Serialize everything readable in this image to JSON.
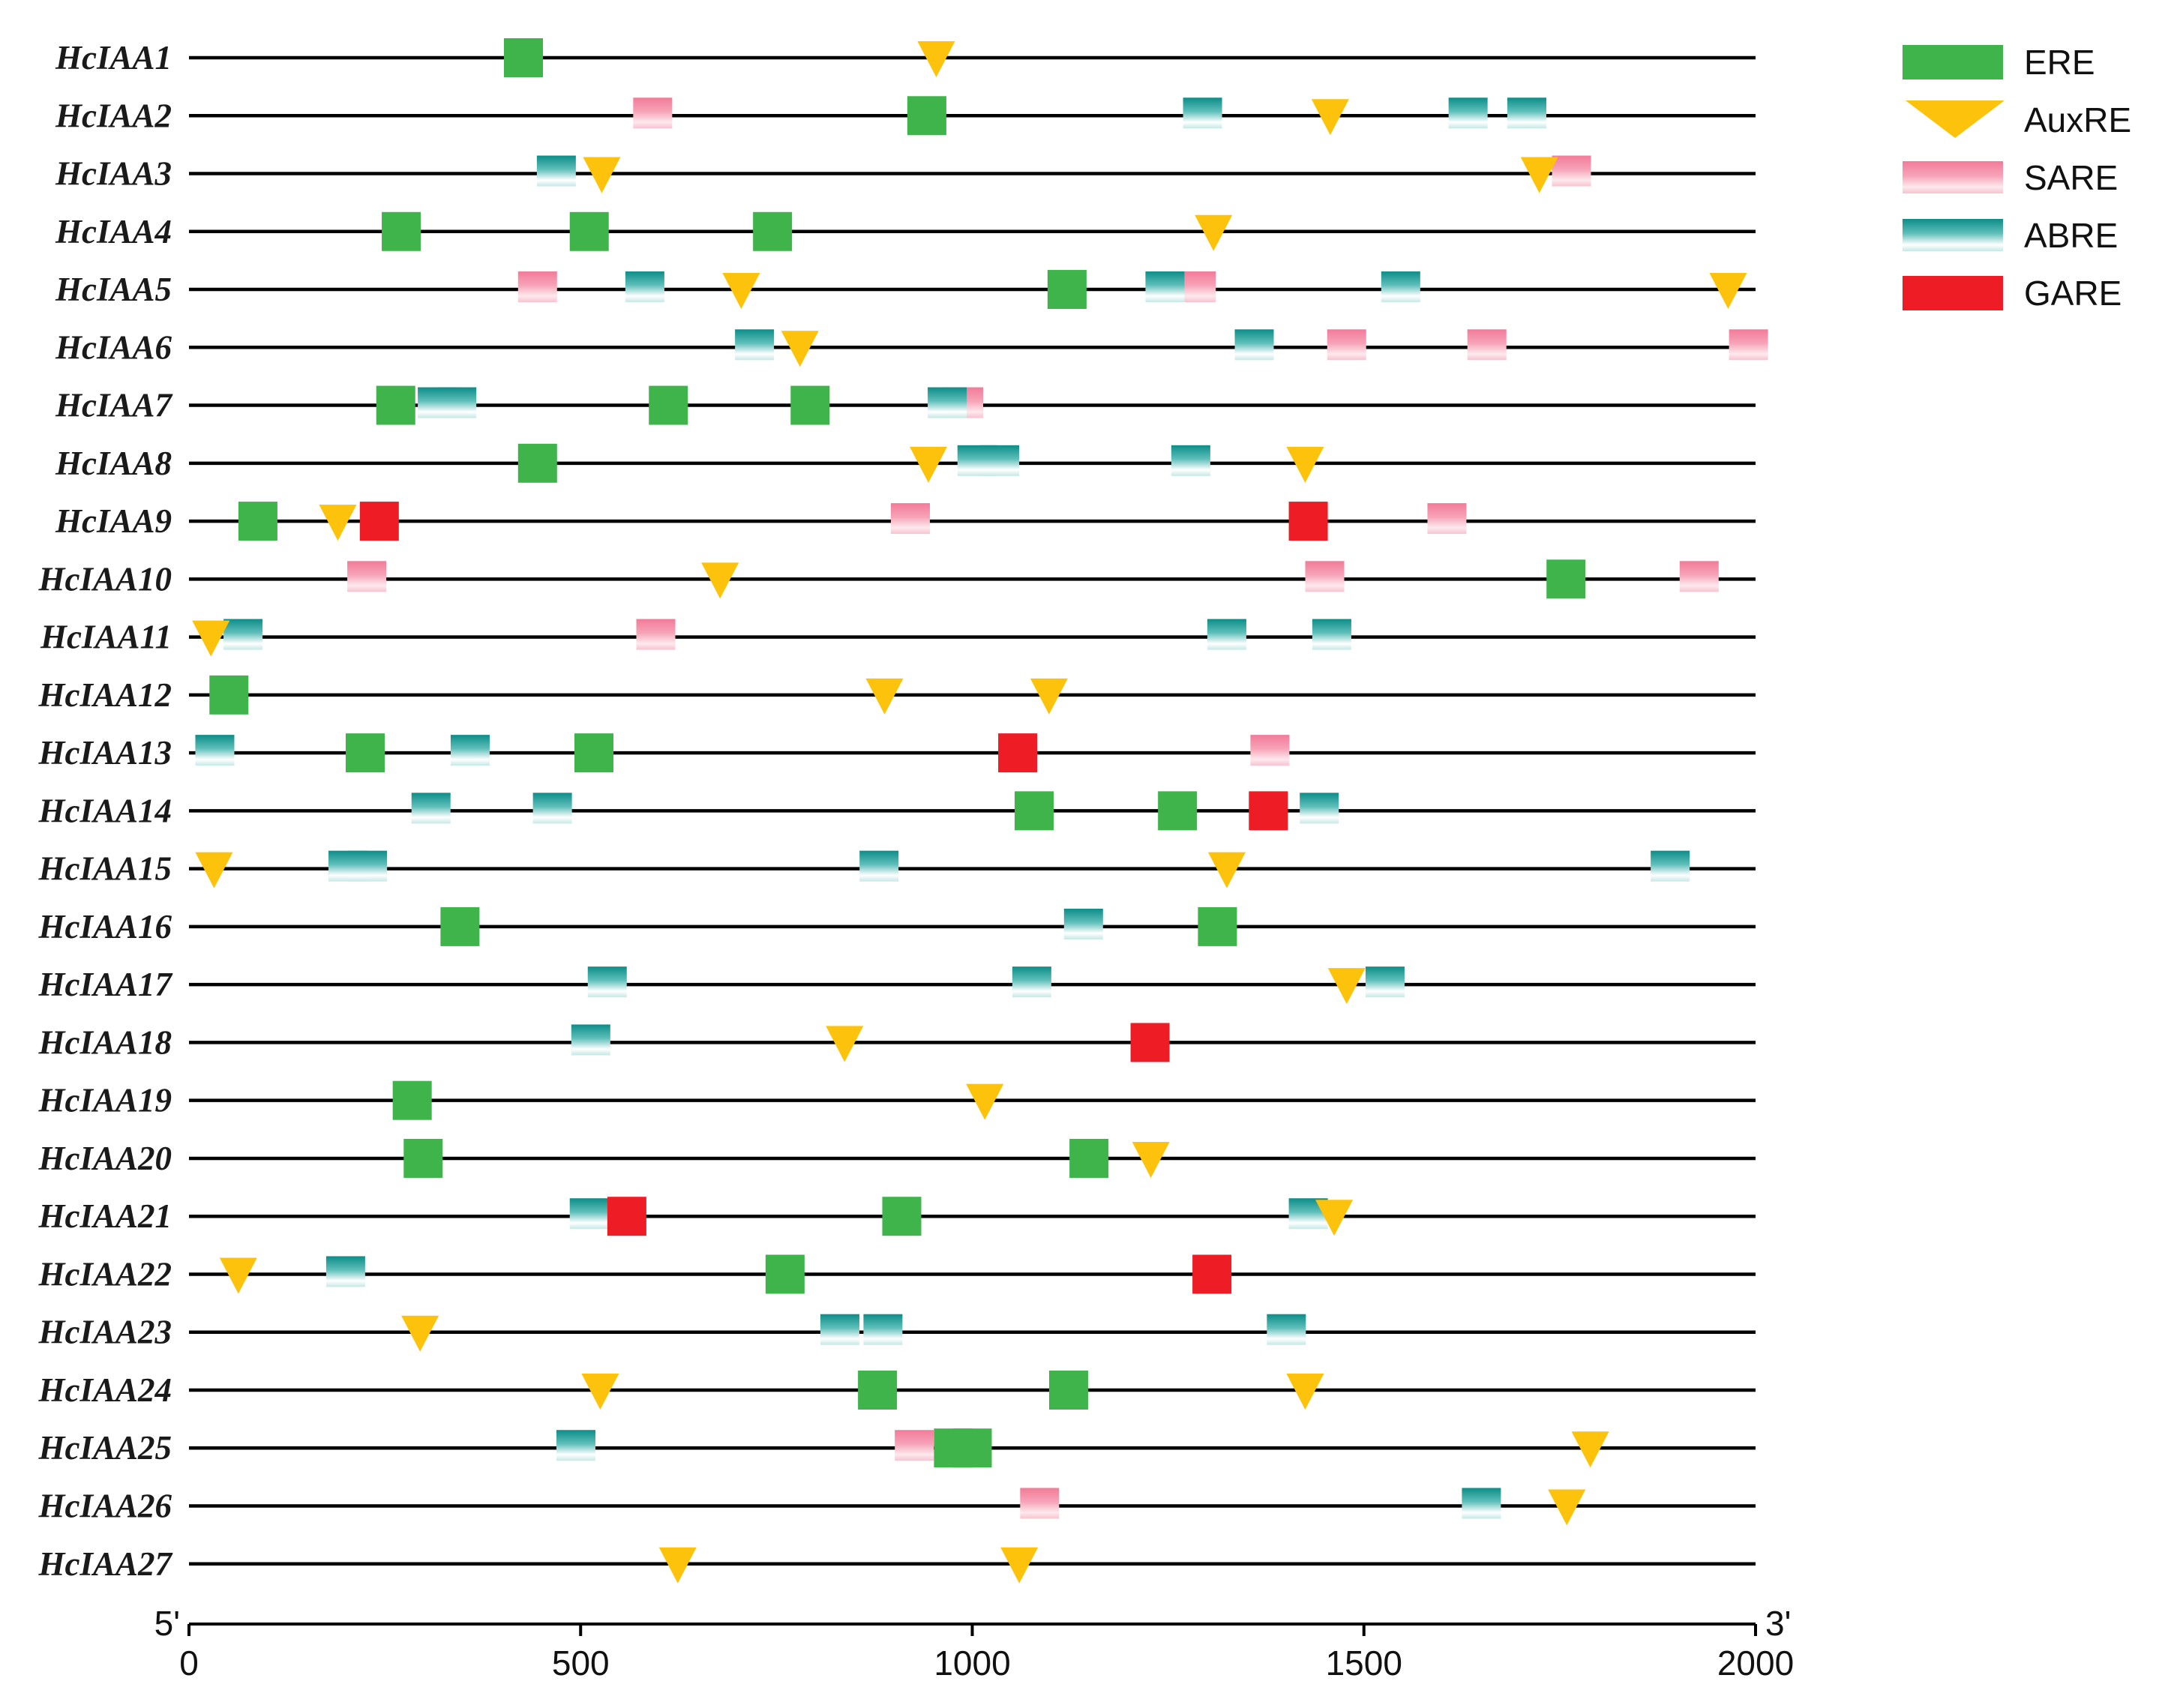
{
  "legend": [
    {
      "name": "ERE",
      "icon": "green-square-icon",
      "colors": [
        "#3fb44b"
      ]
    },
    {
      "name": "AuxRE",
      "icon": "yellow-triangle-down-icon",
      "colors": [
        "#fcc20c"
      ]
    },
    {
      "name": "SARE",
      "icon": "pink-gradient-box-icon",
      "colors": [
        "#f27b99",
        "#f6a3b7",
        "#fde9ee",
        "#f8c2cf"
      ]
    },
    {
      "name": "ABRE",
      "icon": "teal-gradient-box-icon",
      "colors": [
        "#0c8d88",
        "#5fbfba",
        "#ffffff",
        "#c4e8e5"
      ]
    },
    {
      "name": "GARE",
      "icon": "red-square-icon",
      "colors": [
        "#ee1d25"
      ]
    }
  ],
  "axis": {
    "min": 0,
    "max": 2000,
    "ticks": [
      0,
      500,
      1000,
      1500,
      2000
    ],
    "tick_labels": [
      "0",
      "500",
      "1000",
      "1500",
      "2000"
    ],
    "left_label": "5'",
    "right_label": "3'"
  },
  "genes": [
    {
      "name": "HcIAA1",
      "elements": {
        "ERE": [
          427
        ],
        "AuxRE": [
          954
        ]
      }
    },
    {
      "name": "HcIAA2",
      "elements": {
        "SARE": [
          592
        ],
        "ERE": [
          942
        ],
        "ABRE": [
          1294,
          1633,
          1708
        ],
        "AuxRE": [
          1457
        ]
      }
    },
    {
      "name": "HcIAA3",
      "elements": {
        "ABRE": [
          469
        ],
        "AuxRE": [
          527,
          1724
        ],
        "SARE": [
          1765
        ]
      }
    },
    {
      "name": "HcIAA4",
      "elements": {
        "ERE": [
          271,
          511,
          745
        ],
        "AuxRE": [
          1308
        ]
      }
    },
    {
      "name": "HcIAA5",
      "elements": {
        "SARE": [
          445,
          1286
        ],
        "ABRE": [
          582,
          1246,
          1547
        ],
        "AuxRE": [
          705,
          1965
        ],
        "ERE": [
          1121
        ]
      }
    },
    {
      "name": "HcIAA6",
      "elements": {
        "ABRE": [
          722,
          1360
        ],
        "AuxRE": [
          780
        ],
        "SARE": [
          1478,
          1657,
          1991
        ]
      }
    },
    {
      "name": "HcIAA7",
      "elements": {
        "ERE": [
          264,
          612,
          793
        ],
        "ABRE": [
          317,
          342,
          968
        ],
        "SARE": [
          989
        ]
      }
    },
    {
      "name": "HcIAA8",
      "elements": {
        "ERE": [
          445
        ],
        "AuxRE": [
          944,
          1425
        ],
        "ABRE": [
          1006,
          1035,
          1279
        ]
      }
    },
    {
      "name": "HcIAA9",
      "elements": {
        "ERE": [
          88
        ],
        "AuxRE": [
          190
        ],
        "GARE": [
          243,
          1429
        ],
        "SARE": [
          921,
          1606
        ]
      }
    },
    {
      "name": "HcIAA10",
      "elements": {
        "SARE": [
          227,
          1450,
          1928
        ],
        "AuxRE": [
          678
        ],
        "ERE": [
          1758
        ]
      }
    },
    {
      "name": "HcIAA11",
      "elements": {
        "AuxRE": [
          28
        ],
        "ABRE": [
          69,
          1325,
          1459
        ],
        "SARE": [
          596
        ]
      }
    },
    {
      "name": "HcIAA12",
      "elements": {
        "ERE": [
          51
        ],
        "AuxRE": [
          888,
          1098
        ]
      }
    },
    {
      "name": "HcIAA13",
      "elements": {
        "ABRE": [
          33,
          359
        ],
        "ERE": [
          225,
          517
        ],
        "GARE": [
          1058
        ],
        "SARE": [
          1380
        ]
      }
    },
    {
      "name": "HcIAA14",
      "elements": {
        "ABRE": [
          309,
          464,
          1443
        ],
        "ERE": [
          1079,
          1262
        ],
        "GARE": [
          1378
        ]
      }
    },
    {
      "name": "HcIAA15",
      "elements": {
        "AuxRE": [
          32,
          1325
        ],
        "ABRE": [
          203,
          228,
          881,
          1891
        ]
      }
    },
    {
      "name": "HcIAA16",
      "elements": {
        "ERE": [
          346,
          1313
        ],
        "ABRE": [
          1142
        ]
      }
    },
    {
      "name": "HcIAA17",
      "elements": {
        "ABRE": [
          534,
          1076,
          1527
        ],
        "AuxRE": [
          1478
        ]
      }
    },
    {
      "name": "HcIAA18",
      "elements": {
        "ABRE": [
          513
        ],
        "AuxRE": [
          837
        ],
        "GARE": [
          1227
        ]
      }
    },
    {
      "name": "HcIAA19",
      "elements": {
        "ERE": [
          285
        ],
        "AuxRE": [
          1016
        ]
      }
    },
    {
      "name": "HcIAA20",
      "elements": {
        "ERE": [
          299,
          1149
        ],
        "AuxRE": [
          1228
        ]
      }
    },
    {
      "name": "HcIAA21",
      "elements": {
        "ABRE": [
          511,
          1429
        ],
        "GARE": [
          559
        ],
        "ERE": [
          910
        ],
        "AuxRE": [
          1462
        ]
      }
    },
    {
      "name": "HcIAA22",
      "elements": {
        "AuxRE": [
          63
        ],
        "ABRE": [
          200
        ],
        "ERE": [
          761
        ],
        "GARE": [
          1306
        ]
      }
    },
    {
      "name": "HcIAA23",
      "elements": {
        "AuxRE": [
          295
        ],
        "ABRE": [
          831,
          886,
          1401
        ]
      }
    },
    {
      "name": "HcIAA24",
      "elements": {
        "AuxRE": [
          525,
          1425
        ],
        "ERE": [
          879,
          1123
        ]
      }
    },
    {
      "name": "HcIAA25",
      "elements": {
        "ABRE": [
          494
        ],
        "SARE": [
          926
        ],
        "ERE": [
          976,
          1000
        ],
        "AuxRE": [
          1789
        ]
      }
    },
    {
      "name": "HcIAA26",
      "elements": {
        "SARE": [
          1086
        ],
        "ABRE": [
          1650
        ],
        "AuxRE": [
          1759
        ]
      }
    },
    {
      "name": "HcIAA27",
      "elements": {
        "AuxRE": [
          624,
          1060
        ]
      }
    }
  ]
}
